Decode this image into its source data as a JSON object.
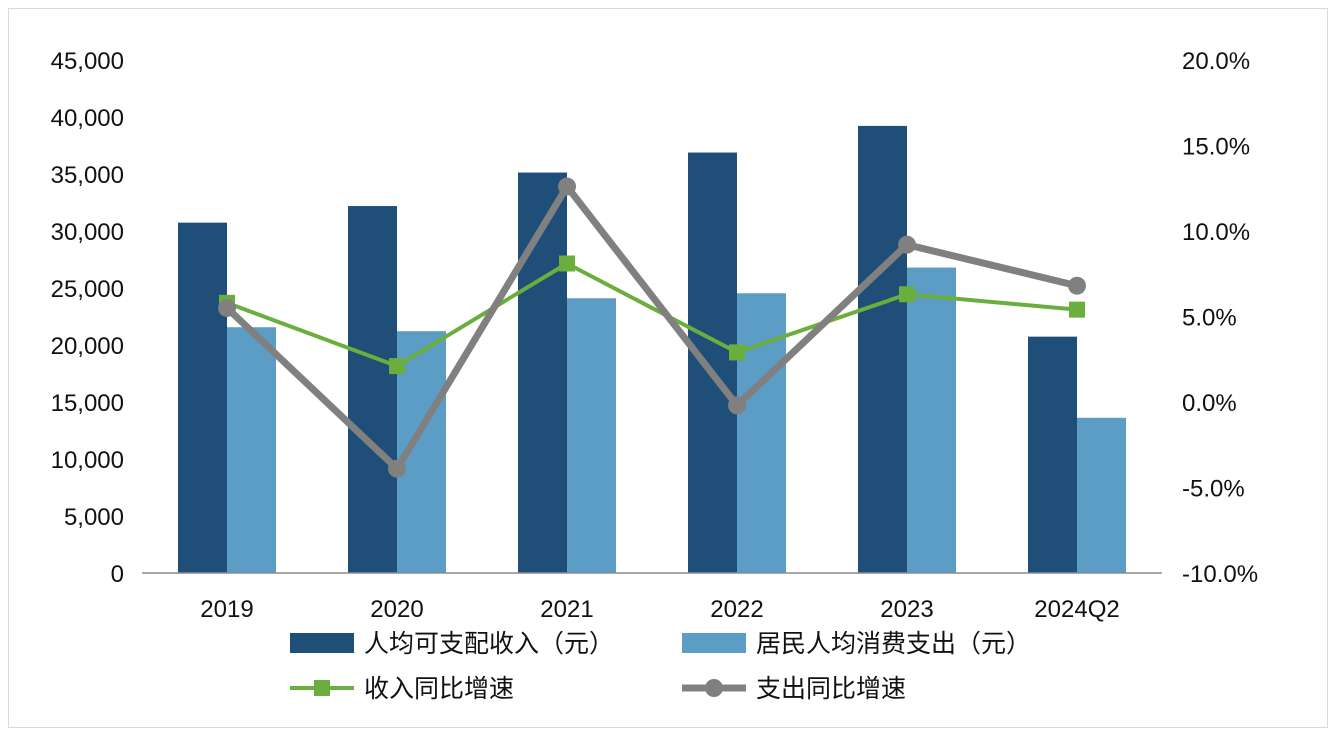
{
  "chart_data": {
    "type": "bar",
    "categories": [
      "2019",
      "2020",
      "2021",
      "2022",
      "2023",
      "2024Q2"
    ],
    "series": [
      {
        "name": "人均可支配收入（元）",
        "kind": "bar",
        "axis": "left",
        "color": "#1f4e79",
        "values": [
          30733,
          32189,
          35128,
          36883,
          39218,
          20733
        ]
      },
      {
        "name": "居民人均消费支出（元）",
        "kind": "bar",
        "axis": "left",
        "color": "#5b9dc5",
        "values": [
          21559,
          21210,
          24100,
          24538,
          26796,
          13614
        ]
      },
      {
        "name": "收入同比增速",
        "kind": "line",
        "axis": "right",
        "color": "#6aaf3d",
        "marker": "square",
        "values": [
          5.8,
          2.1,
          8.1,
          2.9,
          6.3,
          5.4
        ]
      },
      {
        "name": "支出同比增速",
        "kind": "line",
        "axis": "right",
        "color": "#808080",
        "marker": "circle",
        "values": [
          5.5,
          -3.9,
          12.6,
          -0.2,
          9.2,
          6.8
        ]
      }
    ],
    "left_axis": {
      "min": 0,
      "max": 45000,
      "ticks": [
        "45,000",
        "40,000",
        "35,000",
        "30,000",
        "25,000",
        "20,000",
        "15,000",
        "10,000",
        "5,000",
        "0"
      ]
    },
    "right_axis": {
      "min": -10,
      "max": 20,
      "ticks": [
        "20.0%",
        "15.0%",
        "10.0%",
        "5.0%",
        "0.0%",
        "-5.0%",
        "-10.0%"
      ]
    },
    "grid": false,
    "legend_position": "bottom"
  }
}
